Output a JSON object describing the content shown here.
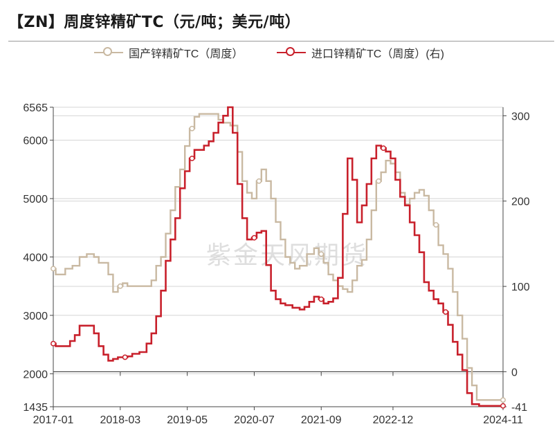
{
  "header": {
    "title": "【ZN】周度锌精矿TC（元/吨；美元/吨）"
  },
  "watermark": "紫金天风期货",
  "colors": {
    "domestic": "#c9b9a2",
    "imported": "#c8202b",
    "grid": "#d4d4d4",
    "axis": "#444444"
  },
  "chart_data": {
    "type": "line",
    "title": "【ZN】周度锌精矿TC（元/吨；美元/吨）",
    "legend_position": "top-center",
    "grid": true,
    "x_range": [
      "2017-01",
      "2024-11"
    ],
    "x_ticks": [
      "2017-01",
      "2018-03",
      "2019-05",
      "2020-07",
      "2021-09",
      "2022-12",
      "2024-11"
    ],
    "y_left": {
      "range": [
        1435,
        6565
      ],
      "ticks": [
        1435,
        2000,
        3000,
        4000,
        5000,
        6000,
        6565
      ]
    },
    "y_right": {
      "range": [
        -41,
        310
      ],
      "ticks": [
        -41,
        0,
        100,
        200,
        300
      ]
    },
    "series": [
      {
        "name": "国产锌精矿TC（周度）",
        "axis": "left",
        "color": "#c9b9a2",
        "points": [
          [
            "2017-01",
            3800
          ],
          [
            "2017-02",
            3700
          ],
          [
            "2017-03",
            3700
          ],
          [
            "2017-04",
            3800
          ],
          [
            "2017-06",
            3850
          ],
          [
            "2017-07",
            4000
          ],
          [
            "2017-09",
            4050
          ],
          [
            "2017-10",
            4000
          ],
          [
            "2017-11",
            3900
          ],
          [
            "2017-12",
            3900
          ],
          [
            "2018-01",
            3700
          ],
          [
            "2018-02",
            3400
          ],
          [
            "2018-03",
            3500
          ],
          [
            "2018-04",
            3550
          ],
          [
            "2018-05",
            3500
          ],
          [
            "2018-09",
            3500
          ],
          [
            "2018-10",
            3600
          ],
          [
            "2018-11",
            3850
          ],
          [
            "2018-12",
            4000
          ],
          [
            "2019-01",
            4400
          ],
          [
            "2019-02",
            4800
          ],
          [
            "2019-03",
            5200
          ],
          [
            "2019-04",
            5500
          ],
          [
            "2019-05",
            5900
          ],
          [
            "2019-06",
            6200
          ],
          [
            "2019-07",
            6400
          ],
          [
            "2019-08",
            6450
          ],
          [
            "2019-10",
            6450
          ],
          [
            "2019-11",
            6450
          ],
          [
            "2019-12",
            6350
          ],
          [
            "2020-01",
            6300
          ],
          [
            "2020-03",
            6250
          ],
          [
            "2020-04",
            5800
          ],
          [
            "2020-05",
            5300
          ],
          [
            "2020-06",
            5100
          ],
          [
            "2020-07",
            5000
          ],
          [
            "2020-08",
            5300
          ],
          [
            "2020-09",
            5500
          ],
          [
            "2020-10",
            5300
          ],
          [
            "2020-11",
            5000
          ],
          [
            "2020-12",
            4600
          ],
          [
            "2021-01",
            4300
          ],
          [
            "2021-02",
            4000
          ],
          [
            "2021-03",
            3900
          ],
          [
            "2021-04",
            3800
          ],
          [
            "2021-05",
            3850
          ],
          [
            "2021-07",
            4050
          ],
          [
            "2021-08",
            4150
          ],
          [
            "2021-09",
            4050
          ],
          [
            "2021-10",
            3900
          ],
          [
            "2021-11",
            3700
          ],
          [
            "2021-12",
            3600
          ],
          [
            "2022-01",
            3500
          ],
          [
            "2022-02",
            3450
          ],
          [
            "2022-03",
            3400
          ],
          [
            "2022-04",
            3600
          ],
          [
            "2022-05",
            3850
          ],
          [
            "2022-06",
            3950
          ],
          [
            "2022-07",
            4300
          ],
          [
            "2022-08",
            4800
          ],
          [
            "2022-09",
            5300
          ],
          [
            "2022-10",
            5450
          ],
          [
            "2022-11",
            5650
          ],
          [
            "2022-12",
            5600
          ],
          [
            "2023-01",
            5450
          ],
          [
            "2023-02",
            5100
          ],
          [
            "2023-03",
            4900
          ],
          [
            "2023-04",
            5000
          ],
          [
            "2023-05",
            5100
          ],
          [
            "2023-06",
            5150
          ],
          [
            "2023-07",
            5050
          ],
          [
            "2023-08",
            4800
          ],
          [
            "2023-09",
            4550
          ],
          [
            "2023-10",
            4200
          ],
          [
            "2023-11",
            4050
          ],
          [
            "2023-12",
            3800
          ],
          [
            "2024-01",
            3400
          ],
          [
            "2024-02",
            3000
          ],
          [
            "2024-03",
            2600
          ],
          [
            "2024-04",
            2100
          ],
          [
            "2024-05",
            1800
          ],
          [
            "2024-06",
            1550
          ],
          [
            "2024-08",
            1550
          ],
          [
            "2024-11",
            1550
          ]
        ]
      },
      {
        "name": "进口锌精矿TC（周度）(右)",
        "axis": "right",
        "color": "#c8202b",
        "points": [
          [
            "2017-01",
            33
          ],
          [
            "2017-02",
            30
          ],
          [
            "2017-04",
            30
          ],
          [
            "2017-05",
            36
          ],
          [
            "2017-06",
            43
          ],
          [
            "2017-07",
            54
          ],
          [
            "2017-09",
            54
          ],
          [
            "2017-10",
            45
          ],
          [
            "2017-11",
            30
          ],
          [
            "2017-12",
            20
          ],
          [
            "2018-01",
            13
          ],
          [
            "2018-02",
            15
          ],
          [
            "2018-03",
            17
          ],
          [
            "2018-04",
            17
          ],
          [
            "2018-05",
            18
          ],
          [
            "2018-06",
            21
          ],
          [
            "2018-08",
            23
          ],
          [
            "2018-09",
            33
          ],
          [
            "2018-10",
            45
          ],
          [
            "2018-11",
            65
          ],
          [
            "2018-12",
            95
          ],
          [
            "2019-01",
            130
          ],
          [
            "2019-02",
            155
          ],
          [
            "2019-03",
            180
          ],
          [
            "2019-04",
            215
          ],
          [
            "2019-05",
            235
          ],
          [
            "2019-06",
            250
          ],
          [
            "2019-07",
            260
          ],
          [
            "2019-08",
            260
          ],
          [
            "2019-09",
            265
          ],
          [
            "2019-10",
            270
          ],
          [
            "2019-11",
            280
          ],
          [
            "2019-12",
            292
          ],
          [
            "2020-01",
            300
          ],
          [
            "2020-02",
            310
          ],
          [
            "2020-03",
            280
          ],
          [
            "2020-04",
            220
          ],
          [
            "2020-05",
            180
          ],
          [
            "2020-06",
            155
          ],
          [
            "2020-07",
            157
          ],
          [
            "2020-08",
            163
          ],
          [
            "2020-09",
            165
          ],
          [
            "2020-10",
            125
          ],
          [
            "2020-11",
            95
          ],
          [
            "2020-12",
            85
          ],
          [
            "2021-01",
            80
          ],
          [
            "2021-02",
            78
          ],
          [
            "2021-04",
            75
          ],
          [
            "2021-05",
            73
          ],
          [
            "2021-06",
            76
          ],
          [
            "2021-07",
            82
          ],
          [
            "2021-08",
            88
          ],
          [
            "2021-09",
            85
          ],
          [
            "2021-10",
            80
          ],
          [
            "2021-11",
            82
          ],
          [
            "2021-12",
            86
          ],
          [
            "2022-01",
            110
          ],
          [
            "2022-02",
            185
          ],
          [
            "2022-03",
            250
          ],
          [
            "2022-04",
            225
          ],
          [
            "2022-05",
            175
          ],
          [
            "2022-06",
            195
          ],
          [
            "2022-07",
            220
          ],
          [
            "2022-08",
            250
          ],
          [
            "2022-09",
            265
          ],
          [
            "2022-10",
            262
          ],
          [
            "2022-11",
            258
          ],
          [
            "2022-12",
            250
          ],
          [
            "2023-01",
            225
          ],
          [
            "2023-02",
            205
          ],
          [
            "2023-03",
            195
          ],
          [
            "2023-04",
            175
          ],
          [
            "2023-05",
            160
          ],
          [
            "2023-06",
            140
          ],
          [
            "2023-07",
            105
          ],
          [
            "2023-08",
            95
          ],
          [
            "2023-09",
            85
          ],
          [
            "2023-10",
            80
          ],
          [
            "2023-11",
            70
          ],
          [
            "2023-12",
            55
          ],
          [
            "2024-01",
            35
          ],
          [
            "2024-02",
            20
          ],
          [
            "2024-03",
            2
          ],
          [
            "2024-04",
            -25
          ],
          [
            "2024-05",
            -38
          ],
          [
            "2024-07",
            -40
          ],
          [
            "2024-09",
            -40
          ],
          [
            "2024-11",
            -40
          ]
        ]
      }
    ]
  }
}
